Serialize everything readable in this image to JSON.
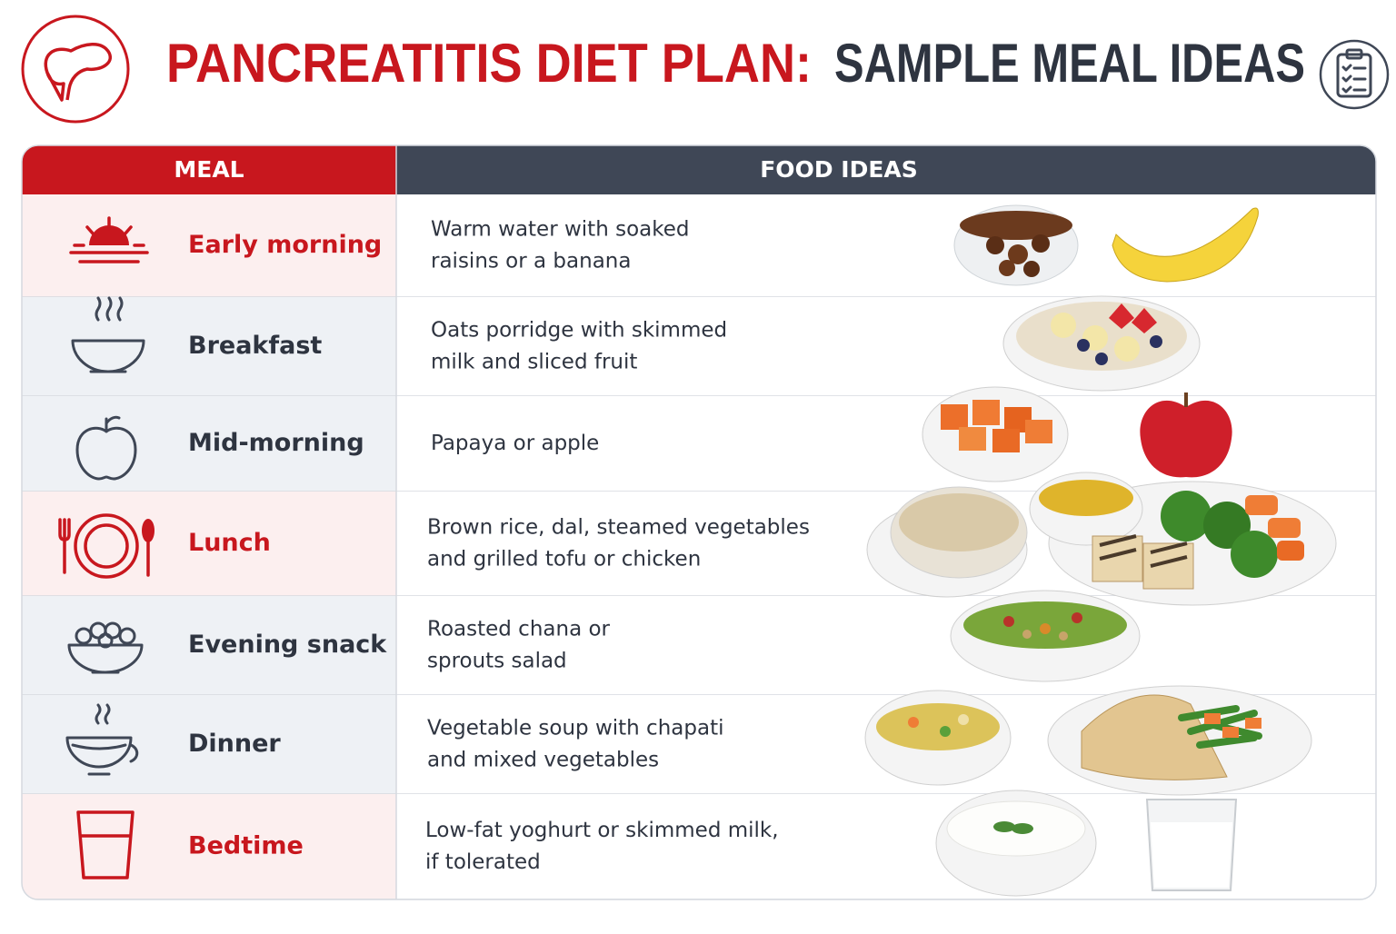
{
  "header": {
    "title_red": "PANCREATITIS DIET PLAN:",
    "title_dark": "SAMPLE MEAL IDEAS"
  },
  "table": {
    "columns": [
      "MEAL",
      "FOOD IDEAS"
    ],
    "rows": [
      {
        "meal": "Early morning",
        "food": [
          "Warm water with soaked",
          "raisins or a banana"
        ]
      },
      {
        "meal": "Breakfast",
        "food": [
          "Oats porridge with skimmed",
          "milk and sliced fruit"
        ]
      },
      {
        "meal": "Mid-morning",
        "food": [
          "Papaya or apple"
        ]
      },
      {
        "meal": "Lunch",
        "food": [
          "Brown rice, dal, steamed vegetables",
          "and grilled tofu or chicken"
        ]
      },
      {
        "meal": "Evening snack",
        "food": [
          "Roasted chana or",
          "sprouts salad"
        ]
      },
      {
        "meal": "Dinner",
        "food": [
          "Vegetable soup with chapati",
          "and mixed vegetables"
        ]
      },
      {
        "meal": "Bedtime",
        "food": [
          "Low-fat yoghurt or skimmed milk,",
          "if tolerated"
        ]
      }
    ]
  }
}
